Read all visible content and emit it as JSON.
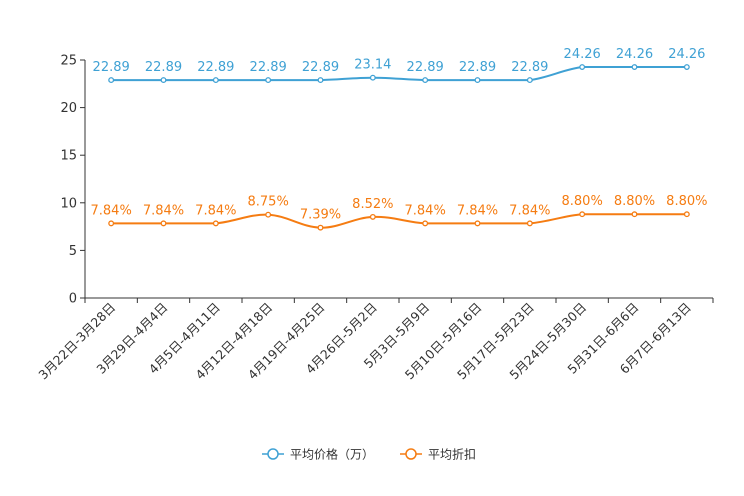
{
  "chart_data": {
    "type": "line",
    "title": "",
    "xlabel": "",
    "ylabel": "",
    "ylim": [
      0,
      25
    ],
    "yticks": [
      0,
      5,
      10,
      15,
      20,
      25
    ],
    "grid": false,
    "legend_position": "bottom-center",
    "categories": [
      "3月22日-3月28日",
      "3月29日-4月4日",
      "4月5日-4月11日",
      "4月12日-4月18日",
      "4月19日-4月25日",
      "4月26日-5月2日",
      "5月3日-5月9日",
      "5月10日-5月16日",
      "5月17日-5月23日",
      "5月24日-5月30日",
      "5月31日-6月6日",
      "6月7日-6月13日"
    ],
    "series": [
      {
        "name": "平均价格（万）",
        "color": "#3fa1d4",
        "values": [
          22.89,
          22.89,
          22.89,
          22.89,
          22.89,
          23.14,
          22.89,
          22.89,
          22.89,
          24.26,
          24.26,
          24.26
        ],
        "labels": [
          "22.89",
          "22.89",
          "22.89",
          "22.89",
          "22.89",
          "23.14",
          "22.89",
          "22.89",
          "22.89",
          "24.26",
          "24.26",
          "24.26"
        ]
      },
      {
        "name": "平均折扣",
        "color": "#f57c12",
        "values": [
          7.84,
          7.84,
          7.84,
          8.75,
          7.39,
          8.52,
          7.84,
          7.84,
          7.84,
          8.8,
          8.8,
          8.8
        ],
        "labels": [
          "7.84%",
          "7.84%",
          "7.84%",
          "8.75%",
          "7.39%",
          "8.52%",
          "7.84%",
          "7.84%",
          "7.84%",
          "8.80%",
          "8.80%",
          "8.80%"
        ]
      }
    ]
  }
}
